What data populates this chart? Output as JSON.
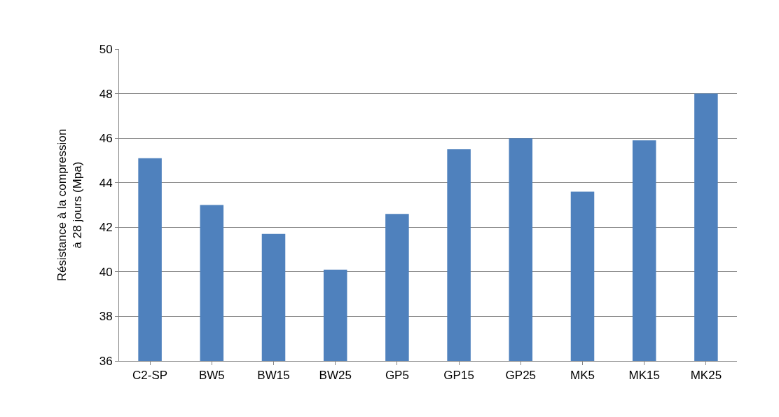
{
  "chart_data": {
    "type": "bar",
    "ylabel": "Résistance à la compression\nà 28 jours (Mpa)",
    "categories": [
      "C2-SP",
      "BW5",
      "BW15",
      "BW25",
      "GP5",
      "GP15",
      "GP25",
      "MK5",
      "MK15",
      "MK25"
    ],
    "values": [
      45.1,
      43.0,
      41.7,
      40.1,
      42.6,
      45.5,
      46.0,
      43.6,
      45.9,
      48.0
    ],
    "color": "#4f81bd",
    "ylim": [
      36,
      50
    ],
    "yticks": [
      36,
      38,
      40,
      42,
      44,
      46,
      48,
      50
    ],
    "grid": "y",
    "legend": false
  }
}
